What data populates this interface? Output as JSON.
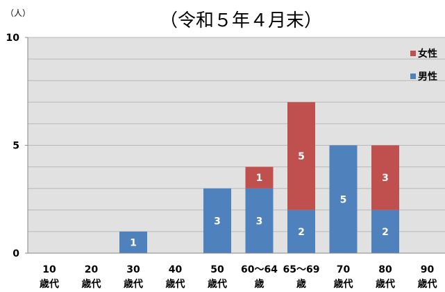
{
  "chart_data": {
    "type": "bar",
    "stacked": true,
    "title": "（令和５年４月末）",
    "ylabel": "（人）",
    "ylim": [
      0,
      10
    ],
    "yticks": [
      "0",
      "5",
      "10"
    ],
    "grid": true,
    "legend_position": "top-right",
    "categories": [
      [
        "10",
        "歳代"
      ],
      [
        "20",
        "歳代"
      ],
      [
        "30",
        "歳代"
      ],
      [
        "40",
        "歳代"
      ],
      [
        "50",
        "歳代"
      ],
      [
        "60～64",
        "歳"
      ],
      [
        "65～69",
        "歳"
      ],
      [
        "70",
        "歳代"
      ],
      [
        "80",
        "歳代"
      ],
      [
        "90",
        "歳代"
      ]
    ],
    "series": [
      {
        "name": "男性",
        "color": "#4f81bd",
        "values": [
          0,
          0,
          1,
          0,
          3,
          3,
          2,
          5,
          2,
          0
        ]
      },
      {
        "name": "女性",
        "color": "#c0504d",
        "values": [
          0,
          0,
          0,
          0,
          0,
          1,
          5,
          0,
          3,
          0
        ]
      }
    ],
    "legend_order": [
      "女性",
      "男性"
    ]
  }
}
